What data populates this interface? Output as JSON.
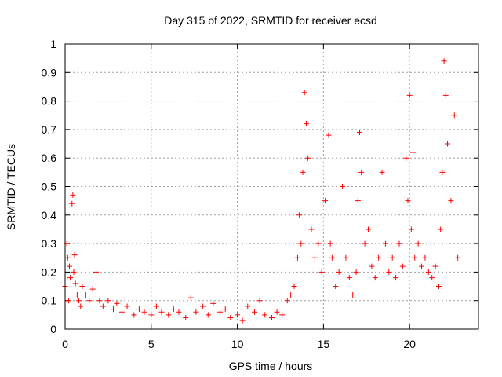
{
  "chart_data": {
    "type": "scatter",
    "title": "Day 315 of 2022, SRMTID for receiver ecsd",
    "xlabel": "GPS time / hours",
    "ylabel": "SRMTID / TECUs",
    "xlim": [
      0,
      24
    ],
    "ylim": [
      0,
      1
    ],
    "xticks": [
      0,
      5,
      10,
      15,
      20
    ],
    "xtick_labels": [
      "0",
      "5",
      "10",
      "15",
      "20"
    ],
    "yticks": [
      0,
      0.1,
      0.2,
      0.3,
      0.4,
      0.5,
      0.6,
      0.7,
      0.8,
      0.9,
      1
    ],
    "ytick_labels": [
      "0",
      "0.1",
      "0.2",
      "0.3",
      "0.4",
      "0.5",
      "0.6",
      "0.7",
      "0.8",
      "0.9",
      "1"
    ],
    "grid": true,
    "marker": "+",
    "series": [
      {
        "name": "SRMTID",
        "color": "#ff0000",
        "x": [
          0.0,
          0.1,
          0.15,
          0.2,
          0.25,
          0.3,
          0.4,
          0.45,
          0.5,
          0.55,
          0.6,
          0.7,
          0.8,
          0.9,
          1.0,
          1.2,
          1.4,
          1.6,
          1.8,
          2.0,
          2.2,
          2.5,
          2.8,
          3.0,
          3.3,
          3.6,
          4.0,
          4.3,
          4.6,
          5.0,
          5.3,
          5.6,
          6.0,
          6.3,
          6.6,
          7.0,
          7.3,
          7.6,
          8.0,
          8.3,
          8.6,
          9.0,
          9.3,
          9.6,
          10.0,
          10.3,
          10.6,
          11.0,
          11.3,
          11.6,
          12.0,
          12.3,
          12.6,
          12.9,
          13.1,
          13.3,
          13.5,
          13.6,
          13.7,
          13.8,
          13.9,
          14.0,
          14.1,
          14.3,
          14.5,
          14.7,
          14.9,
          15.1,
          15.3,
          15.4,
          15.5,
          15.7,
          15.9,
          16.1,
          16.3,
          16.5,
          16.7,
          16.9,
          17.0,
          17.1,
          17.2,
          17.4,
          17.6,
          17.8,
          18.0,
          18.2,
          18.4,
          18.6,
          18.8,
          19.0,
          19.2,
          19.4,
          19.6,
          19.8,
          19.9,
          20.0,
          20.1,
          20.2,
          20.3,
          20.5,
          20.7,
          20.9,
          21.1,
          21.3,
          21.5,
          21.7,
          21.8,
          21.9,
          22.0,
          22.1,
          22.2,
          22.4,
          22.6,
          22.8
        ],
        "values": [
          0.15,
          0.3,
          0.25,
          0.1,
          0.22,
          0.18,
          0.44,
          0.47,
          0.2,
          0.26,
          0.16,
          0.12,
          0.1,
          0.08,
          0.15,
          0.12,
          0.1,
          0.14,
          0.2,
          0.1,
          0.08,
          0.1,
          0.07,
          0.09,
          0.06,
          0.08,
          0.05,
          0.07,
          0.06,
          0.05,
          0.08,
          0.06,
          0.05,
          0.07,
          0.06,
          0.04,
          0.11,
          0.06,
          0.08,
          0.05,
          0.09,
          0.06,
          0.07,
          0.04,
          0.05,
          0.03,
          0.08,
          0.06,
          0.1,
          0.05,
          0.04,
          0.06,
          0.05,
          0.1,
          0.12,
          0.15,
          0.25,
          0.4,
          0.3,
          0.55,
          0.83,
          0.72,
          0.6,
          0.35,
          0.25,
          0.3,
          0.2,
          0.45,
          0.68,
          0.3,
          0.25,
          0.15,
          0.2,
          0.5,
          0.25,
          0.18,
          0.12,
          0.2,
          0.45,
          0.69,
          0.55,
          0.3,
          0.35,
          0.22,
          0.18,
          0.25,
          0.55,
          0.3,
          0.2,
          0.25,
          0.18,
          0.3,
          0.22,
          0.6,
          0.45,
          0.82,
          0.35,
          0.62,
          0.25,
          0.3,
          0.22,
          0.25,
          0.2,
          0.18,
          0.22,
          0.15,
          0.35,
          0.55,
          0.94,
          0.82,
          0.65,
          0.45,
          0.75,
          0.25
        ]
      }
    ]
  }
}
